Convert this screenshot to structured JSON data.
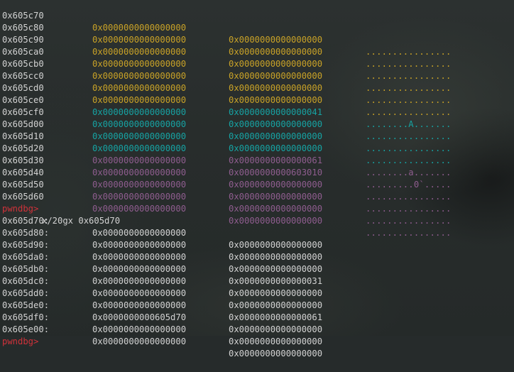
{
  "terminal": {
    "hexdump": [
      {
        "addr": "0x605c70",
        "v1": "0x0000000000000000",
        "v2": "0x0000000000000000",
        "ascii": "................",
        "c1": "yellow",
        "c2": "yellow",
        "ca": "yellow"
      },
      {
        "addr": "0x605c80",
        "v1": "0x0000000000000000",
        "v2": "0x0000000000000000",
        "ascii": "................",
        "c1": "yellow",
        "c2": "yellow",
        "ca": "yellow"
      },
      {
        "addr": "0x605c90",
        "v1": "0x0000000000000000",
        "v2": "0x0000000000000000",
        "ascii": "................",
        "c1": "yellow",
        "c2": "yellow",
        "ca": "yellow"
      },
      {
        "addr": "0x605ca0",
        "v1": "0x0000000000000000",
        "v2": "0x0000000000000000",
        "ascii": "................",
        "c1": "yellow",
        "c2": "yellow",
        "ca": "yellow"
      },
      {
        "addr": "0x605cb0",
        "v1": "0x0000000000000000",
        "v2": "0x0000000000000000",
        "ascii": "................",
        "c1": "yellow",
        "c2": "yellow",
        "ca": "yellow"
      },
      {
        "addr": "0x605cc0",
        "v1": "0x0000000000000000",
        "v2": "0x0000000000000000",
        "ascii": "................",
        "c1": "yellow",
        "c2": "yellow",
        "ca": "yellow"
      },
      {
        "addr": "0x605cd0",
        "v1": "0x0000000000000000",
        "v2": "0x0000000000000041",
        "ascii": "........A.......",
        "c1": "yellow",
        "c2": "cyan",
        "ca": "cyan"
      },
      {
        "addr": "0x605ce0",
        "v1": "0x0000000000000000",
        "v2": "0x0000000000000000",
        "ascii": "................",
        "c1": "cyan",
        "c2": "cyan",
        "ca": "cyan"
      },
      {
        "addr": "0x605cf0",
        "v1": "0x0000000000000000",
        "v2": "0x0000000000000000",
        "ascii": "................",
        "c1": "cyan",
        "c2": "cyan",
        "ca": "cyan"
      },
      {
        "addr": "0x605d00",
        "v1": "0x0000000000000000",
        "v2": "0x0000000000000000",
        "ascii": "................",
        "c1": "cyan",
        "c2": "cyan",
        "ca": "cyan"
      },
      {
        "addr": "0x605d10",
        "v1": "0x0000000000000000",
        "v2": "0x0000000000000061",
        "ascii": "........a.......",
        "c1": "cyan",
        "c2": "purple",
        "ca": "purple"
      },
      {
        "addr": "0x605d20",
        "v1": "0x0000000000000000",
        "v2": "0x0000000000603010",
        "ascii": ".........0`.....",
        "c1": "purple",
        "c2": "purple",
        "ca": "purple"
      },
      {
        "addr": "0x605d30",
        "v1": "0x0000000000000000",
        "v2": "0x0000000000000000",
        "ascii": "................",
        "c1": "purple",
        "c2": "purple",
        "ca": "purple"
      },
      {
        "addr": "0x605d40",
        "v1": "0x0000000000000000",
        "v2": "0x0000000000000000",
        "ascii": "................",
        "c1": "purple",
        "c2": "purple",
        "ca": "purple"
      },
      {
        "addr": "0x605d50",
        "v1": "0x0000000000000000",
        "v2": "0x0000000000000000",
        "ascii": "................",
        "c1": "purple",
        "c2": "purple",
        "ca": "purple"
      },
      {
        "addr": "0x605d60",
        "v1": "0x0000000000000000",
        "v2": "0x0000000000000000",
        "ascii": "................",
        "c1": "purple",
        "c2": "purple",
        "ca": "purple"
      }
    ],
    "prompt": "pwndbg>",
    "command": "x/20gx 0x605d70",
    "examine": [
      {
        "addr": "0x605d70:",
        "v1": "0x0000000000000000",
        "v2": "0x0000000000000000"
      },
      {
        "addr": "0x605d80:",
        "v1": "0x0000000000000000",
        "v2": "0x0000000000000000"
      },
      {
        "addr": "0x605d90:",
        "v1": "0x0000000000000000",
        "v2": "0x0000000000000000"
      },
      {
        "addr": "0x605da0:",
        "v1": "0x0000000000000000",
        "v2": "0x0000000000000031"
      },
      {
        "addr": "0x605db0:",
        "v1": "0x0000000000000000",
        "v2": "0x0000000000000000"
      },
      {
        "addr": "0x605dc0:",
        "v1": "0x0000000000000000",
        "v2": "0x0000000000000000"
      },
      {
        "addr": "0x605dd0:",
        "v1": "0x0000000000000000",
        "v2": "0x0000000000000061"
      },
      {
        "addr": "0x605de0:",
        "v1": "0x0000000000605d70",
        "v2": "0x0000000000000000"
      },
      {
        "addr": "0x605df0:",
        "v1": "0x0000000000000000",
        "v2": "0x0000000000000000"
      },
      {
        "addr": "0x605e00:",
        "v1": "0x0000000000000000",
        "v2": "0x0000000000000000"
      }
    ],
    "final_prompt": "pwndbg>",
    "colors": {
      "yellow": "#c9a227",
      "cyan": "#16a3a3",
      "purple": "#8f5d8f",
      "prompt": "#d0323a",
      "text": "#d2d2d2"
    }
  }
}
